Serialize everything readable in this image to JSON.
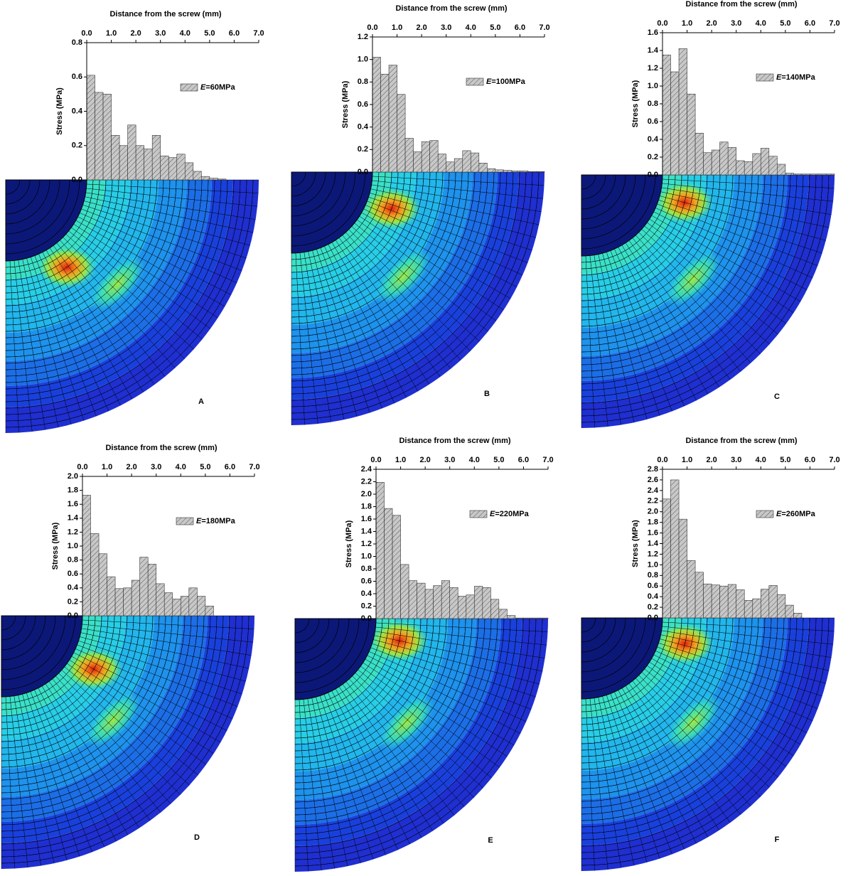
{
  "chart_data": [
    {
      "type": "histogram",
      "x_label": "Distance from the screw (mm)",
      "y_label": "Stress (MPa)",
      "panel_label": "A",
      "bins": [
        0,
        0.333,
        0.667,
        1,
        1.333,
        1.667,
        2,
        2.333,
        2.667,
        3,
        3.333,
        3.667,
        4,
        4.333,
        4.667,
        5,
        5.333,
        5.667,
        6,
        6.333,
        6.667,
        7
      ],
      "series": [
        {
          "name": "E=60MPa",
          "color": "#c8c8c8",
          "values": [
            0.61,
            0.51,
            0.5,
            0.26,
            0.2,
            0.32,
            0.2,
            0.18,
            0.26,
            0.14,
            0.13,
            0.15,
            0.1,
            0.05,
            0.02,
            0.01,
            0.005,
            0,
            0,
            0,
            0
          ]
        }
      ],
      "xlim": [
        0,
        7
      ],
      "xticks": [
        {
          "value": 0,
          "label": "0.0"
        },
        {
          "value": 1,
          "label": "1.0"
        },
        {
          "value": 2,
          "label": "2.0"
        },
        {
          "value": 3,
          "label": "3.0"
        },
        {
          "value": 4,
          "label": "4.0"
        },
        {
          "value": 5,
          "label": "5.0"
        },
        {
          "value": 6,
          "label": "6.0"
        },
        {
          "value": 7,
          "label": "7.0"
        }
      ],
      "ylim": [
        0,
        0.8
      ],
      "yticks": [
        {
          "value": 0,
          "label": "0.0"
        },
        {
          "value": 0.2,
          "label": "0.2"
        },
        {
          "value": 0.4,
          "label": "0.4"
        },
        {
          "value": 0.6,
          "label": "0.6"
        },
        {
          "value": 0.8,
          "label": "0.8"
        }
      ]
    },
    {
      "type": "histogram",
      "x_label": "Distance from the screw (mm)",
      "y_label": "Stress (MPa)",
      "panel_label": "B",
      "bins": [
        0,
        0.333,
        0.667,
        1,
        1.333,
        1.667,
        2,
        2.333,
        2.667,
        3,
        3.333,
        3.667,
        4,
        4.333,
        4.667,
        5,
        5.333,
        5.667,
        6,
        6.333,
        6.667,
        7
      ],
      "series": [
        {
          "name": "E=100MPa",
          "color": "#c8c8c8",
          "values": [
            1.02,
            0.87,
            0.95,
            0.69,
            0.3,
            0.18,
            0.27,
            0.28,
            0.16,
            0.09,
            0.12,
            0.19,
            0.17,
            0.08,
            0.03,
            0.02,
            0.015,
            0.01,
            0.01,
            0.005,
            0.005
          ]
        }
      ],
      "xlim": [
        0,
        7
      ],
      "xticks": [
        {
          "value": 0,
          "label": "0.0"
        },
        {
          "value": 1,
          "label": "1.0"
        },
        {
          "value": 2,
          "label": "2.0"
        },
        {
          "value": 3,
          "label": "3.0"
        },
        {
          "value": 4,
          "label": "4.0"
        },
        {
          "value": 5,
          "label": "5.0"
        },
        {
          "value": 6,
          "label": "6.0"
        },
        {
          "value": 7,
          "label": "7.0"
        }
      ],
      "ylim": [
        0,
        1.2
      ],
      "yticks": [
        {
          "value": 0,
          "label": "0.0"
        },
        {
          "value": 0.2,
          "label": "0.2"
        },
        {
          "value": 0.4,
          "label": "0.4"
        },
        {
          "value": 0.6,
          "label": "0.6"
        },
        {
          "value": 0.8,
          "label": "0.8"
        },
        {
          "value": 1,
          "label": "1.0"
        },
        {
          "value": 1.2,
          "label": "1.2"
        }
      ]
    },
    {
      "type": "histogram",
      "x_label": "Distance from the screw (mm)",
      "y_label": "Stress (MPa)",
      "panel_label": "C",
      "bins": [
        0,
        0.333,
        0.667,
        1,
        1.333,
        1.667,
        2,
        2.333,
        2.667,
        3,
        3.333,
        3.667,
        4,
        4.333,
        4.667,
        5,
        5.333,
        5.667,
        6,
        6.333,
        6.667,
        7
      ],
      "series": [
        {
          "name": "E=140MPa",
          "color": "#c8c8c8",
          "values": [
            1.35,
            1.16,
            1.42,
            0.91,
            0.47,
            0.25,
            0.28,
            0.37,
            0.31,
            0.16,
            0.15,
            0.24,
            0.3,
            0.21,
            0.12,
            0.02,
            0.01,
            0.01,
            0.01,
            0.01,
            0.01
          ]
        }
      ],
      "xlim": [
        0,
        7
      ],
      "xticks": [
        {
          "value": 0,
          "label": "0.0"
        },
        {
          "value": 1,
          "label": "1.0"
        },
        {
          "value": 2,
          "label": "2.0"
        },
        {
          "value": 3,
          "label": "3.0"
        },
        {
          "value": 4,
          "label": "4.0"
        },
        {
          "value": 5,
          "label": "5.0"
        },
        {
          "value": 6,
          "label": "6.0"
        },
        {
          "value": 7,
          "label": "7.0"
        }
      ],
      "ylim": [
        0,
        1.6
      ],
      "yticks": [
        {
          "value": 0,
          "label": "0.0"
        },
        {
          "value": 0.2,
          "label": "0.2"
        },
        {
          "value": 0.4,
          "label": "0.4"
        },
        {
          "value": 0.6,
          "label": "0.6"
        },
        {
          "value": 0.8,
          "label": "0.8"
        },
        {
          "value": 1,
          "label": "1.0"
        },
        {
          "value": 1.2,
          "label": "1.2"
        },
        {
          "value": 1.4,
          "label": "1.4"
        },
        {
          "value": 1.6,
          "label": "1.6"
        }
      ]
    },
    {
      "type": "histogram",
      "x_label": "Distance from the screw (mm)",
      "y_label": "Stress (MPa)",
      "panel_label": "D",
      "bins": [
        0,
        0.333,
        0.667,
        1,
        1.333,
        1.667,
        2,
        2.333,
        2.667,
        3,
        3.333,
        3.667,
        4,
        4.333,
        4.667,
        5,
        5.333,
        5.667,
        6,
        6.333,
        6.667,
        7
      ],
      "series": [
        {
          "name": "E=180MPa",
          "color": "#c8c8c8",
          "values": [
            1.73,
            1.18,
            0.89,
            0.56,
            0.39,
            0.4,
            0.51,
            0.84,
            0.74,
            0.46,
            0.33,
            0.24,
            0.28,
            0.4,
            0.28,
            0.14,
            0,
            0,
            0,
            0,
            0
          ]
        }
      ],
      "xlim": [
        0,
        7
      ],
      "xticks": [
        {
          "value": 0,
          "label": "0.0"
        },
        {
          "value": 1,
          "label": "1.0"
        },
        {
          "value": 2,
          "label": "2.0"
        },
        {
          "value": 3,
          "label": "3.0"
        },
        {
          "value": 4,
          "label": "4.0"
        },
        {
          "value": 5,
          "label": "5.0"
        },
        {
          "value": 6,
          "label": "6.0"
        },
        {
          "value": 7,
          "label": "7.0"
        }
      ],
      "ylim": [
        0,
        2.0
      ],
      "yticks": [
        {
          "value": 0,
          "label": "0.0"
        },
        {
          "value": 0.2,
          "label": "0.2"
        },
        {
          "value": 0.4,
          "label": "0.4"
        },
        {
          "value": 0.6,
          "label": "0.6"
        },
        {
          "value": 0.8,
          "label": "0.8"
        },
        {
          "value": 1,
          "label": "1.0"
        },
        {
          "value": 1.2,
          "label": "1.2"
        },
        {
          "value": 1.4,
          "label": "1.4"
        },
        {
          "value": 1.6,
          "label": "1.6"
        },
        {
          "value": 1.8,
          "label": "1.8"
        },
        {
          "value": 2,
          "label": "2.0"
        }
      ]
    },
    {
      "type": "histogram",
      "x_label": "Distance from the screw (mm)",
      "y_label": "Stress (MPa)",
      "panel_label": "E",
      "bins": [
        0,
        0.333,
        0.667,
        1,
        1.333,
        1.667,
        2,
        2.333,
        2.667,
        3,
        3.333,
        3.667,
        4,
        4.333,
        4.667,
        5,
        5.333,
        5.667,
        6,
        6.333,
        6.667,
        7
      ],
      "series": [
        {
          "name": "E=220MPa",
          "color": "#c8c8c8",
          "values": [
            2.19,
            1.77,
            1.66,
            0.87,
            0.61,
            0.57,
            0.47,
            0.53,
            0.61,
            0.5,
            0.36,
            0.38,
            0.52,
            0.5,
            0.31,
            0.15,
            0.05,
            0.01,
            0.01,
            0.01,
            0.01
          ]
        }
      ],
      "xlim": [
        0,
        7
      ],
      "xticks": [
        {
          "value": 0,
          "label": "0.0"
        },
        {
          "value": 1,
          "label": "1.0"
        },
        {
          "value": 2,
          "label": "2.0"
        },
        {
          "value": 3,
          "label": "3.0"
        },
        {
          "value": 4,
          "label": "4.0"
        },
        {
          "value": 5,
          "label": "5.0"
        },
        {
          "value": 6,
          "label": "6.0"
        },
        {
          "value": 7,
          "label": "7.0"
        }
      ],
      "ylim": [
        0,
        2.4
      ],
      "yticks": [
        {
          "value": 0,
          "label": "0.0"
        },
        {
          "value": 0.2,
          "label": "0.2"
        },
        {
          "value": 0.4,
          "label": "0.4"
        },
        {
          "value": 0.6,
          "label": "0.6"
        },
        {
          "value": 0.8,
          "label": "0.8"
        },
        {
          "value": 1,
          "label": "1.0"
        },
        {
          "value": 1.2,
          "label": "1.2"
        },
        {
          "value": 1.4,
          "label": "1.4"
        },
        {
          "value": 1.6,
          "label": "1.6"
        },
        {
          "value": 1.8,
          "label": "1.8"
        },
        {
          "value": 2,
          "label": "2.0"
        },
        {
          "value": 2.2,
          "label": "2.2"
        },
        {
          "value": 2.4,
          "label": "2.4"
        }
      ]
    },
    {
      "type": "histogram",
      "x_label": "Distance from the screw (mm)",
      "y_label": "Stress (MPa)",
      "panel_label": "F",
      "bins": [
        0,
        0.333,
        0.667,
        1,
        1.333,
        1.667,
        2,
        2.333,
        2.667,
        3,
        3.333,
        3.667,
        4,
        4.333,
        4.667,
        5,
        5.333,
        5.667,
        6,
        6.333,
        6.667,
        7
      ],
      "series": [
        {
          "name": "E=260MPa",
          "color": "#c8c8c8",
          "values": [
            2.24,
            2.6,
            1.86,
            1.08,
            0.86,
            0.64,
            0.62,
            0.6,
            0.63,
            0.53,
            0.33,
            0.36,
            0.54,
            0.61,
            0.44,
            0.24,
            0.09,
            0,
            0,
            0,
            0
          ]
        }
      ],
      "xlim": [
        0,
        7
      ],
      "xticks": [
        {
          "value": 0,
          "label": "0.0"
        },
        {
          "value": 1,
          "label": "1.0"
        },
        {
          "value": 2,
          "label": "2.0"
        },
        {
          "value": 3,
          "label": "3.0"
        },
        {
          "value": 4,
          "label": "4.0"
        },
        {
          "value": 5,
          "label": "5.0"
        },
        {
          "value": 6,
          "label": "6.0"
        },
        {
          "value": 7,
          "label": "7.0"
        }
      ],
      "ylim": [
        0,
        2.8
      ],
      "yticks": [
        {
          "value": 0,
          "label": "0.0"
        },
        {
          "value": 0.2,
          "label": "0.2"
        },
        {
          "value": 0.4,
          "label": "0.4"
        },
        {
          "value": 0.6,
          "label": "0.6"
        },
        {
          "value": 0.8,
          "label": "0.8"
        },
        {
          "value": 1,
          "label": "1.0"
        },
        {
          "value": 1.2,
          "label": "1.2"
        },
        {
          "value": 1.4,
          "label": "1.4"
        },
        {
          "value": 1.6,
          "label": "1.6"
        },
        {
          "value": 1.8,
          "label": "1.8"
        },
        {
          "value": 2,
          "label": "2.0"
        },
        {
          "value": 2.2,
          "label": "2.2"
        },
        {
          "value": 2.4,
          "label": "2.4"
        },
        {
          "value": 2.6,
          "label": "2.6"
        },
        {
          "value": 2.8,
          "label": "2.8"
        }
      ]
    }
  ]
}
